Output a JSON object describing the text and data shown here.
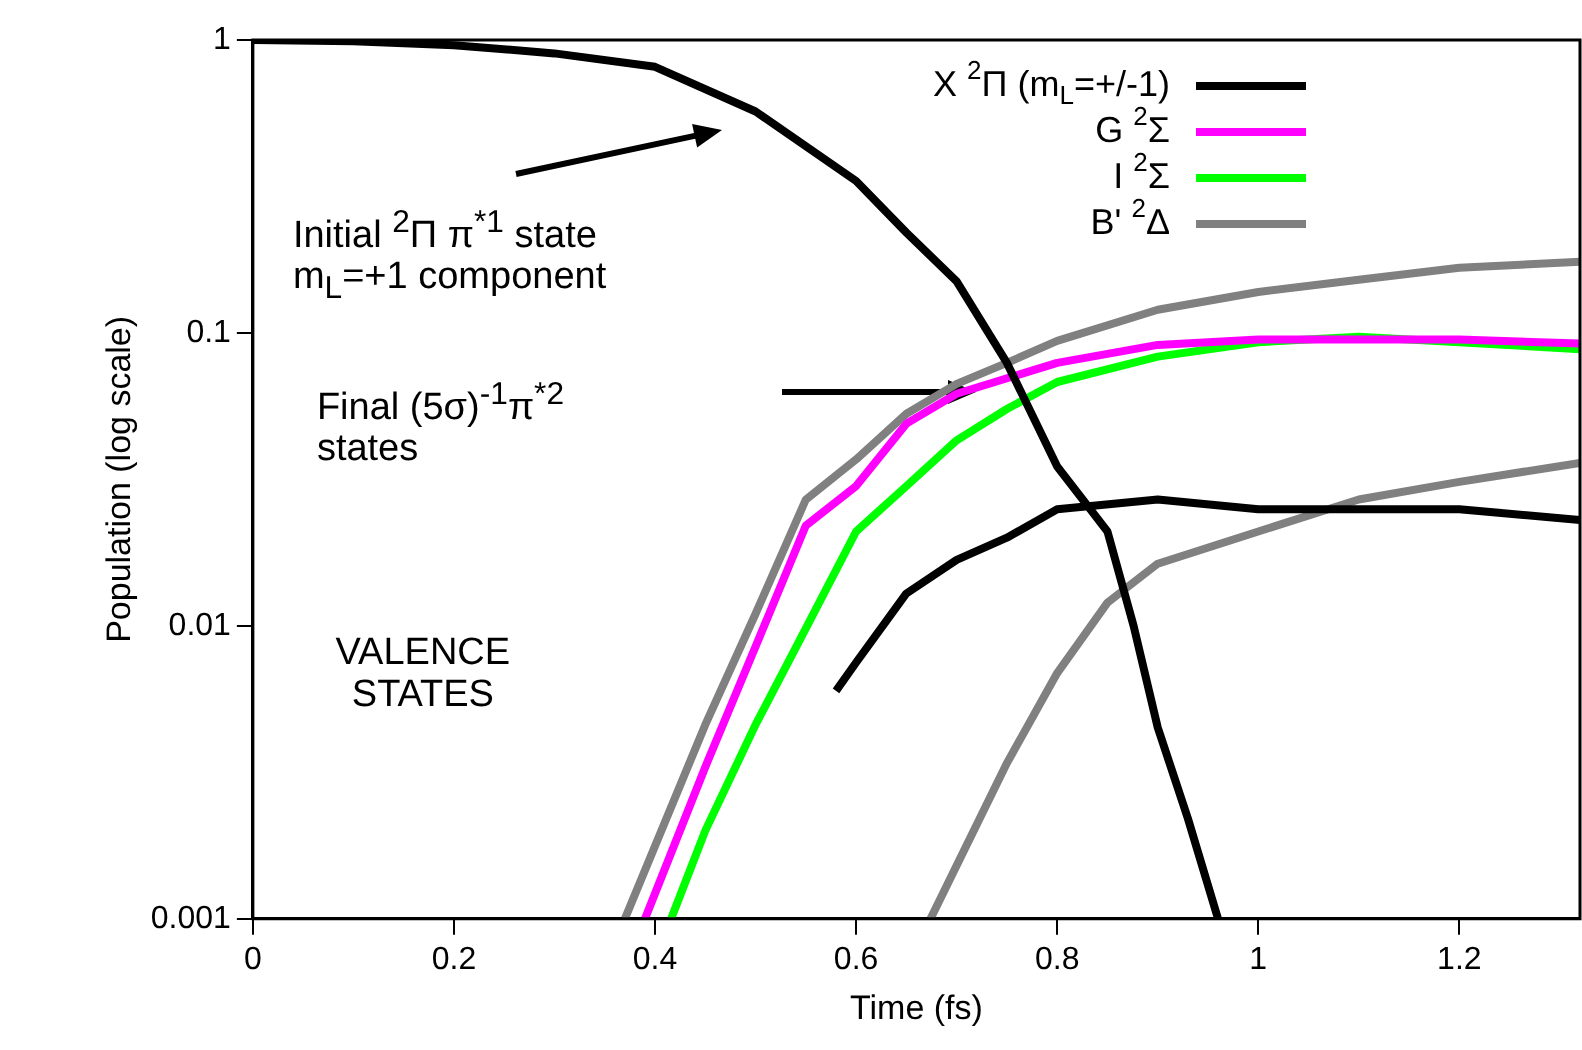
{
  "chart_data": {
    "type": "line",
    "xlabel": "Time (fs)",
    "ylabel": "Population (log scale)",
    "log": "y",
    "grid": false,
    "legend": "top right",
    "marker": "none",
    "line_style": "solid",
    "xlim": [
      0,
      1.32
    ],
    "xticks": [
      0,
      0.2,
      0.4,
      0.6,
      0.8,
      1,
      1.2
    ],
    "ylim": [
      0.001,
      1
    ],
    "yticks": [
      0.001,
      0.01,
      0.1,
      1
    ],
    "series": [
      {
        "name": "X $^{2}$Π (m$_{L}$=+/-1)",
        "color": "#000000",
        "x": [
          0,
          0.1,
          0.2,
          0.3,
          0.4,
          0.5,
          0.6,
          0.65,
          0.7,
          0.75,
          0.8,
          0.85,
          0.876,
          0.9,
          0.93,
          0.96
        ],
        "values": [
          1,
          0.99,
          0.96,
          0.9,
          0.81,
          0.57,
          0.33,
          0.22,
          0.15,
          0.079,
          0.035,
          0.021,
          0.01,
          0.0045,
          0.0022,
          0.001
        ]
      },
      {
        "name": "G $^{2}$Σ",
        "color": "#ff00ff",
        "x": [
          0.39,
          0.45,
          0.5,
          0.55,
          0.6,
          0.65,
          0.7,
          0.8,
          0.9,
          1,
          1.2,
          1.32
        ],
        "values": [
          0.001,
          0.0033,
          0.0085,
          0.022,
          0.03,
          0.049,
          0.062,
          0.079,
          0.091,
          0.095,
          0.095,
          0.092
        ]
      },
      {
        "name": "I $^{2}$Σ",
        "color": "#00ff00",
        "x": [
          0.416,
          0.45,
          0.5,
          0.55,
          0.6,
          0.65,
          0.7,
          0.75,
          0.8,
          0.9,
          1,
          1.1,
          1.2,
          1.32
        ],
        "values": [
          0.001,
          0.002,
          0.0046,
          0.0098,
          0.021,
          0.03,
          0.043,
          0.055,
          0.068,
          0.083,
          0.093,
          0.097,
          0.093,
          0.088
        ]
      },
      {
        "name": "B' $^{2}$Δ",
        "color": "#808080",
        "x": [
          0.37,
          0.45,
          0.5,
          0.55,
          0.6,
          0.65,
          0.7,
          0.75,
          0.8,
          0.9,
          1,
          1.1,
          1.2,
          1.32
        ],
        "values": [
          0.001,
          0.0046,
          0.011,
          0.027,
          0.037,
          0.053,
          0.067,
          0.079,
          0.094,
          0.12,
          0.138,
          0.152,
          0.167,
          0.175
        ]
      },
      {
        "color": "#000000",
        "x": [
          0.58,
          0.6,
          0.65,
          0.7,
          0.75,
          0.8,
          0.9,
          1,
          1.2,
          1.32
        ],
        "values": [
          0.006,
          0.0075,
          0.0129,
          0.0168,
          0.02,
          0.025,
          0.027,
          0.025,
          0.025,
          0.023
        ]
      },
      {
        "color": "#808080",
        "x": [
          0.674,
          0.75,
          0.8,
          0.85,
          0.9,
          1,
          1.1,
          1.2,
          1.32
        ],
        "values": [
          0.001,
          0.0034,
          0.0069,
          0.012,
          0.0163,
          0.021,
          0.027,
          0.031,
          0.036
        ]
      }
    ],
    "annotations": [
      "Initial $^{2}$Π π$^{*1}$ state m$_{L}$=+1 component",
      "Final (5σ)$^{-1}$π$^{*2}$ states",
      "VALENCE STATES"
    ]
  }
}
